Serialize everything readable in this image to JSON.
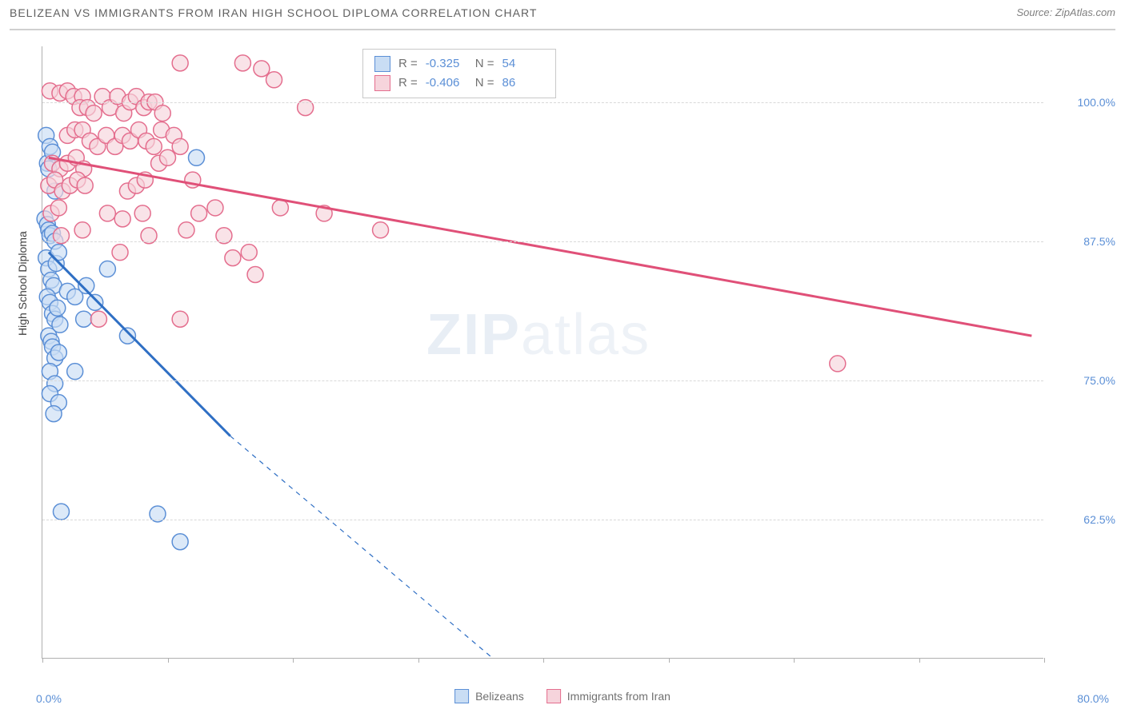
{
  "header": {
    "title": "BELIZEAN VS IMMIGRANTS FROM IRAN HIGH SCHOOL DIPLOMA CORRELATION CHART",
    "source": "Source: ZipAtlas.com"
  },
  "chart": {
    "type": "scatter",
    "ylabel": "High School Diploma",
    "xlim": [
      0,
      80
    ],
    "ylim": [
      50,
      105
    ],
    "xtick_positions": [
      0,
      10,
      20,
      30,
      40,
      50,
      60,
      70,
      80
    ],
    "ytick_labels": [
      "62.5%",
      "75.0%",
      "87.5%",
      "100.0%"
    ],
    "ytick_values": [
      62.5,
      75.0,
      87.5,
      100.0
    ],
    "x_min_label": "0.0%",
    "x_max_label": "80.0%",
    "grid_color": "#d8d8d8",
    "background_color": "#ffffff",
    "marker_radius": 10,
    "marker_stroke_width": 1.5,
    "line_width": 3,
    "dash_pattern": "6,6",
    "watermark": "ZIPatlas",
    "series": [
      {
        "name": "Belizeans",
        "fill": "#c9ddf4",
        "stroke": "#5b8fd6",
        "line_color": "#2f6fc4",
        "R": "-0.325",
        "N": "54",
        "trend": {
          "x1": 0.5,
          "y1": 86.5,
          "x2": 15,
          "y2": 70,
          "extend_x2": 36,
          "extend_y2": 50
        },
        "points": [
          [
            0.3,
            97.0
          ],
          [
            0.4,
            94.5
          ],
          [
            0.5,
            94.0
          ],
          [
            0.6,
            96.0
          ],
          [
            0.8,
            95.5
          ],
          [
            1.0,
            92.0
          ],
          [
            0.2,
            89.5
          ],
          [
            0.4,
            89.0
          ],
          [
            0.5,
            88.5
          ],
          [
            0.6,
            88.0
          ],
          [
            0.8,
            88.2
          ],
          [
            1.0,
            87.5
          ],
          [
            0.3,
            86.0
          ],
          [
            0.5,
            85.0
          ],
          [
            0.7,
            84.0
          ],
          [
            0.9,
            83.5
          ],
          [
            1.1,
            85.5
          ],
          [
            1.3,
            86.5
          ],
          [
            0.4,
            82.5
          ],
          [
            0.6,
            82.0
          ],
          [
            0.8,
            81.0
          ],
          [
            1.0,
            80.5
          ],
          [
            1.2,
            81.5
          ],
          [
            0.5,
            79.0
          ],
          [
            0.7,
            78.5
          ],
          [
            0.8,
            78.0
          ],
          [
            1.4,
            80.0
          ],
          [
            2.0,
            83.0
          ],
          [
            1.0,
            77.0
          ],
          [
            1.3,
            77.5
          ],
          [
            2.6,
            82.5
          ],
          [
            3.3,
            80.5
          ],
          [
            3.5,
            83.5
          ],
          [
            4.2,
            82.0
          ],
          [
            5.2,
            85.0
          ],
          [
            6.8,
            79.0
          ],
          [
            12.3,
            95.0
          ],
          [
            0.6,
            75.8
          ],
          [
            1.0,
            74.7
          ],
          [
            2.6,
            75.8
          ],
          [
            0.6,
            73.8
          ],
          [
            1.3,
            73.0
          ],
          [
            0.9,
            72.0
          ],
          [
            1.5,
            63.2
          ],
          [
            9.2,
            63.0
          ],
          [
            11.0,
            60.5
          ]
        ]
      },
      {
        "name": "Immigrants from Iran",
        "fill": "#f6d4dc",
        "stroke": "#e46e8e",
        "line_color": "#e05078",
        "R": "-0.406",
        "N": "86",
        "trend": {
          "x1": 0.5,
          "y1": 95,
          "x2": 79,
          "y2": 79
        },
        "points": [
          [
            11.0,
            103.5
          ],
          [
            16.0,
            103.5
          ],
          [
            17.5,
            103.0
          ],
          [
            18.5,
            102.0
          ],
          [
            0.6,
            101.0
          ],
          [
            1.4,
            100.8
          ],
          [
            2.0,
            101.0
          ],
          [
            2.5,
            100.5
          ],
          [
            3.2,
            100.5
          ],
          [
            3.0,
            99.5
          ],
          [
            3.6,
            99.5
          ],
          [
            4.1,
            99.0
          ],
          [
            4.8,
            100.5
          ],
          [
            5.4,
            99.5
          ],
          [
            6.0,
            100.5
          ],
          [
            6.5,
            99.0
          ],
          [
            7.0,
            100.0
          ],
          [
            7.5,
            100.5
          ],
          [
            8.1,
            99.5
          ],
          [
            8.5,
            100.0
          ],
          [
            9.0,
            100.0
          ],
          [
            9.6,
            99.0
          ],
          [
            21.0,
            99.5
          ],
          [
            2.0,
            97.0
          ],
          [
            2.6,
            97.5
          ],
          [
            3.2,
            97.5
          ],
          [
            3.8,
            96.5
          ],
          [
            4.4,
            96.0
          ],
          [
            5.1,
            97.0
          ],
          [
            5.8,
            96.0
          ],
          [
            6.4,
            97.0
          ],
          [
            7.0,
            96.5
          ],
          [
            7.7,
            97.5
          ],
          [
            8.3,
            96.5
          ],
          [
            8.9,
            96.0
          ],
          [
            9.5,
            97.5
          ],
          [
            10.5,
            97.0
          ],
          [
            11.0,
            96.0
          ],
          [
            0.8,
            94.5
          ],
          [
            1.4,
            94.0
          ],
          [
            2.0,
            94.5
          ],
          [
            2.7,
            95.0
          ],
          [
            3.3,
            94.0
          ],
          [
            9.3,
            94.5
          ],
          [
            10.0,
            95.0
          ],
          [
            0.5,
            92.5
          ],
          [
            1.0,
            93.0
          ],
          [
            1.6,
            92.0
          ],
          [
            2.2,
            92.5
          ],
          [
            2.8,
            93.0
          ],
          [
            3.4,
            92.5
          ],
          [
            6.8,
            92.0
          ],
          [
            7.5,
            92.5
          ],
          [
            8.2,
            93.0
          ],
          [
            12.0,
            93.0
          ],
          [
            0.7,
            90.0
          ],
          [
            1.3,
            90.5
          ],
          [
            5.2,
            90.0
          ],
          [
            6.4,
            89.5
          ],
          [
            8.0,
            90.0
          ],
          [
            12.5,
            90.0
          ],
          [
            13.8,
            90.5
          ],
          [
            19.0,
            90.5
          ],
          [
            1.5,
            88.0
          ],
          [
            3.2,
            88.5
          ],
          [
            8.5,
            88.0
          ],
          [
            11.5,
            88.5
          ],
          [
            14.5,
            88.0
          ],
          [
            6.2,
            86.5
          ],
          [
            15.2,
            86.0
          ],
          [
            16.5,
            86.5
          ],
          [
            17.0,
            84.5
          ],
          [
            22.5,
            90.0
          ],
          [
            27.0,
            88.5
          ],
          [
            4.5,
            80.5
          ],
          [
            11.0,
            80.5
          ],
          [
            63.5,
            76.5
          ]
        ]
      }
    ]
  },
  "legend": {
    "items": [
      "Belizeans",
      "Immigrants from Iran"
    ]
  }
}
